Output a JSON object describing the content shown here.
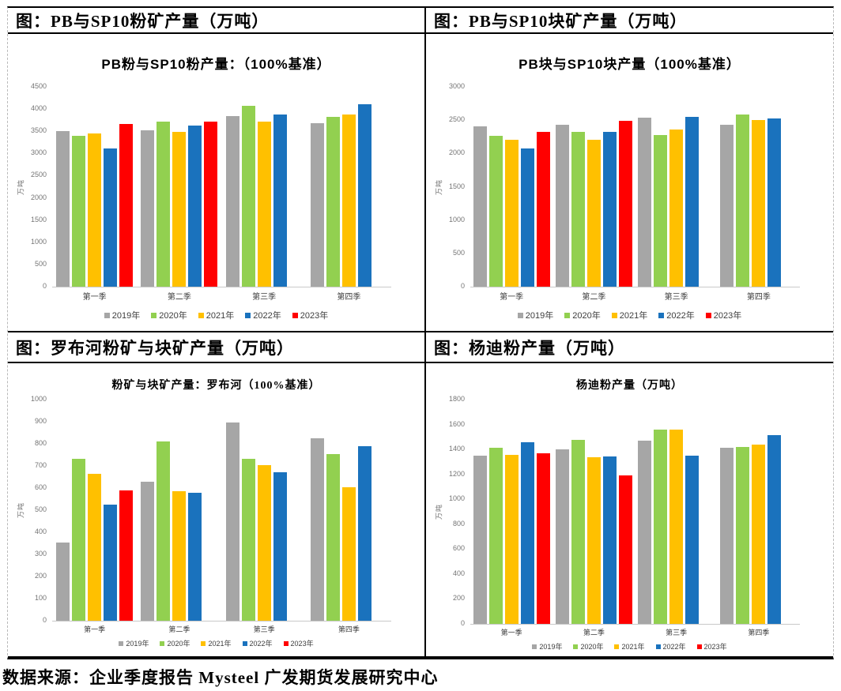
{
  "source_note": "数据来源：企业季度报告 Mysteel 广发期货发展研究中心",
  "palette": {
    "y2019": "#A6A6A6",
    "y2020": "#92D050",
    "y2021": "#FFC000",
    "y2022": "#1A72BD",
    "y2023": "#FF0000"
  },
  "chart_data": [
    {
      "type": "bar",
      "header": "图：PB与SP10粉矿产量（万吨）",
      "title": "PB粉与SP10粉产量：（100%基准）",
      "ylabel": "万吨",
      "xlabel": "",
      "ylim": [
        0,
        4500
      ],
      "ystep": 500,
      "grid": false,
      "legend_position": "bottom",
      "categories": [
        "第一季",
        "第二季",
        "第三季",
        "第四季"
      ],
      "series": [
        {
          "name": "2019年",
          "color": "#A6A6A6",
          "values": [
            3500,
            3530,
            3840,
            3690
          ]
        },
        {
          "name": "2020年",
          "color": "#92D050",
          "values": [
            3390,
            3720,
            4070,
            3830
          ]
        },
        {
          "name": "2021年",
          "color": "#FFC000",
          "values": [
            3450,
            3480,
            3720,
            3880
          ]
        },
        {
          "name": "2022年",
          "color": "#1A72BD",
          "values": [
            3110,
            3630,
            3880,
            4110
          ]
        },
        {
          "name": "2023年",
          "color": "#FF0000",
          "values": [
            3660,
            3720,
            null,
            null
          ]
        }
      ]
    },
    {
      "type": "bar",
      "header": "图：PB与SP10块矿产量（万吨）",
      "title": "PB块与SP10块产量（100%基准）",
      "ylabel": "万吨",
      "xlabel": "",
      "ylim": [
        0,
        3000
      ],
      "ystep": 500,
      "grid": false,
      "legend_position": "bottom",
      "categories": [
        "第一季",
        "第二季",
        "第三季",
        "第四季"
      ],
      "series": [
        {
          "name": "2019年",
          "color": "#A6A6A6",
          "values": [
            2410,
            2430,
            2540,
            2430
          ]
        },
        {
          "name": "2020年",
          "color": "#92D050",
          "values": [
            2260,
            2320,
            2280,
            2580
          ]
        },
        {
          "name": "2021年",
          "color": "#FFC000",
          "values": [
            2200,
            2200,
            2360,
            2500
          ]
        },
        {
          "name": "2022年",
          "color": "#1A72BD",
          "values": [
            2080,
            2320,
            2550,
            2520
          ]
        },
        {
          "name": "2023年",
          "color": "#FF0000",
          "values": [
            2320,
            2490,
            null,
            null
          ]
        }
      ]
    },
    {
      "type": "bar",
      "header": "图：罗布河粉矿与块矿产量（万吨）",
      "title": "粉矿与块矿产量：罗布河（100%基准）",
      "ylabel": "万吨",
      "xlabel": "",
      "ylim": [
        0,
        1000
      ],
      "ystep": 100,
      "grid": false,
      "legend_position": "bottom",
      "categories": [
        "第一季",
        "第二季",
        "第三季",
        "第四季"
      ],
      "series": [
        {
          "name": "2019年",
          "color": "#A6A6A6",
          "values": [
            355,
            630,
            895,
            825
          ]
        },
        {
          "name": "2020年",
          "color": "#92D050",
          "values": [
            732,
            812,
            732,
            755
          ]
        },
        {
          "name": "2021年",
          "color": "#FFC000",
          "values": [
            663,
            585,
            702,
            605
          ]
        },
        {
          "name": "2022年",
          "color": "#1A72BD",
          "values": [
            525,
            577,
            670,
            790
          ]
        },
        {
          "name": "2023年",
          "color": "#FF0000",
          "values": [
            590,
            null,
            null,
            null
          ]
        }
      ]
    },
    {
      "type": "bar",
      "header": "图：杨迪粉产量（万吨）",
      "title": "杨迪粉产量（万吨）",
      "ylabel": "万吨",
      "xlabel": "",
      "ylim": [
        0,
        1800
      ],
      "ystep": 200,
      "grid": false,
      "legend_position": "bottom",
      "categories": [
        "第一季",
        "第二季",
        "第三季",
        "第四季"
      ],
      "series": [
        {
          "name": "2019年",
          "color": "#A6A6A6",
          "values": [
            1348,
            1398,
            1468,
            1415
          ]
        },
        {
          "name": "2020年",
          "color": "#92D050",
          "values": [
            1412,
            1478,
            1562,
            1422
          ]
        },
        {
          "name": "2021年",
          "color": "#FFC000",
          "values": [
            1355,
            1338,
            1558,
            1442
          ]
        },
        {
          "name": "2022年",
          "color": "#1A72BD",
          "values": [
            1455,
            1345,
            1350,
            1518
          ]
        },
        {
          "name": "2023年",
          "color": "#FF0000",
          "values": [
            1370,
            1190,
            null,
            null
          ]
        }
      ]
    }
  ]
}
